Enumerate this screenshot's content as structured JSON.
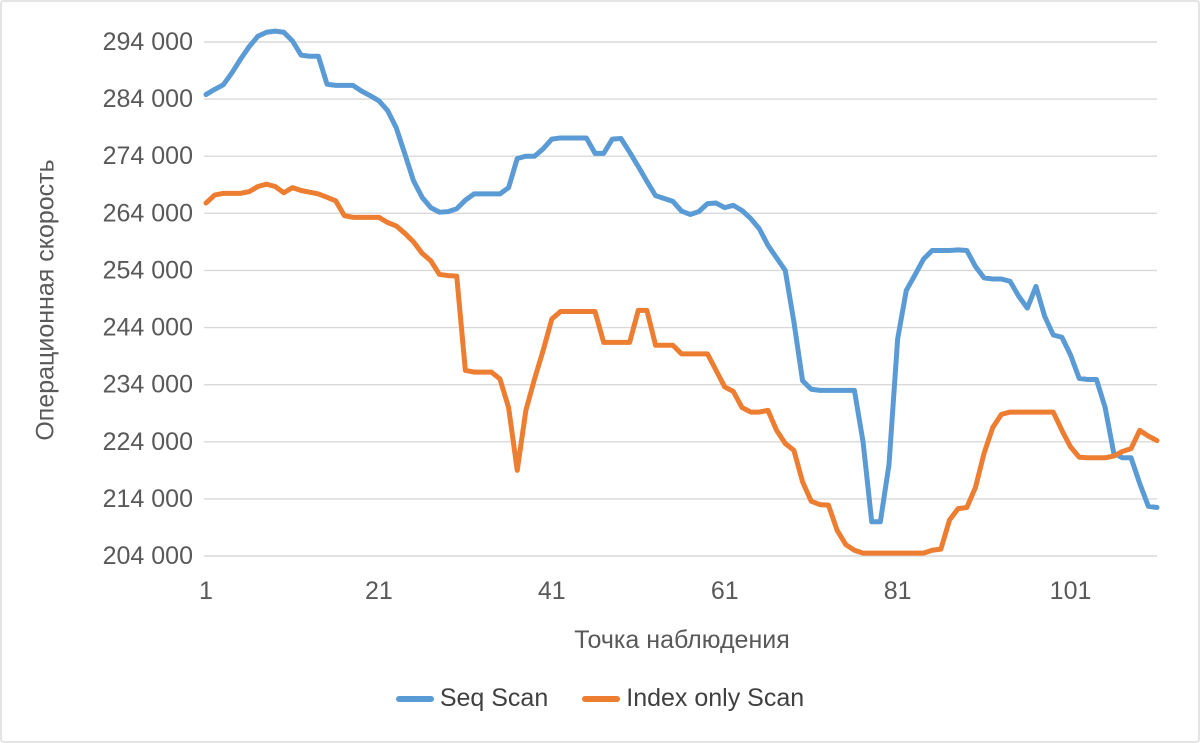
{
  "chart_data": {
    "type": "line",
    "title": "",
    "xlabel": "Точка наблюдения",
    "ylabel": "Операционная скорость",
    "ylim": [
      204000,
      294000
    ],
    "xlim": [
      1,
      111
    ],
    "grid": "horizontal",
    "legend_position": "bottom-center",
    "y_ticks": [
      {
        "label": "294 000",
        "value": 294000
      },
      {
        "label": "284 000",
        "value": 284000
      },
      {
        "label": "274 000",
        "value": 274000
      },
      {
        "label": "264 000",
        "value": 264000
      },
      {
        "label": "254 000",
        "value": 254000
      },
      {
        "label": "244 000",
        "value": 244000
      },
      {
        "label": "234 000",
        "value": 234000
      },
      {
        "label": "224 000",
        "value": 224000
      },
      {
        "label": "214 000",
        "value": 214000
      },
      {
        "label": "204 000",
        "value": 204000
      }
    ],
    "x_ticks": [
      {
        "label": "1",
        "value": 1
      },
      {
        "label": "21",
        "value": 21
      },
      {
        "label": "41",
        "value": 41
      },
      {
        "label": "61",
        "value": 61
      },
      {
        "label": "81",
        "value": 81
      },
      {
        "label": "101",
        "value": 101
      }
    ],
    "x_start": 1,
    "series": [
      {
        "name": "Seq Scan",
        "color": "#5B9BD5",
        "values": [
          284800,
          285700,
          286500,
          288600,
          291000,
          293200,
          295000,
          295700,
          295900,
          295700,
          294200,
          291700,
          291500,
          291500,
          286600,
          286400,
          286400,
          286400,
          285400,
          284600,
          283700,
          282000,
          279000,
          274400,
          269700,
          266800,
          265000,
          264200,
          264300,
          264800,
          266300,
          267400,
          267400,
          267400,
          267400,
          268500,
          273600,
          274000,
          274000,
          275300,
          277000,
          277200,
          277200,
          277200,
          277200,
          274500,
          274500,
          277000,
          277100,
          274700,
          272200,
          269600,
          267100,
          266600,
          266100,
          264400,
          263800,
          264300,
          265700,
          265800,
          265000,
          265400,
          264500,
          263100,
          261300,
          258400,
          256200,
          254000,
          245000,
          234700,
          233200,
          233000,
          233000,
          233000,
          233000,
          233000,
          224000,
          210000,
          210000,
          220000,
          242000,
          250500,
          253200,
          256000,
          257500,
          257500,
          257500,
          257600,
          257500,
          254700,
          252700,
          252500,
          252500,
          252100,
          249500,
          247400,
          251200,
          246000,
          242700,
          242300,
          239200,
          235100,
          234900,
          234900,
          230000,
          222000,
          221200,
          221200,
          216700,
          212700,
          212500
        ]
      },
      {
        "name": "Index only Scan",
        "color": "#ED7D31",
        "values": [
          265800,
          267200,
          267500,
          267500,
          267500,
          267800,
          268700,
          269100,
          268700,
          267600,
          268500,
          268000,
          267700,
          267400,
          266800,
          266200,
          263600,
          263300,
          263300,
          263300,
          263300,
          262400,
          261800,
          260500,
          259000,
          257000,
          255700,
          253300,
          253100,
          253000,
          236500,
          236200,
          236200,
          236200,
          235000,
          230000,
          219000,
          229500,
          235000,
          240000,
          245500,
          246800,
          246800,
          246800,
          246800,
          246800,
          241400,
          241400,
          241400,
          241400,
          247000,
          247000,
          240900,
          240900,
          240900,
          239400,
          239400,
          239400,
          239400,
          236500,
          233600,
          232800,
          230000,
          229200,
          229200,
          229500,
          226000,
          223700,
          222500,
          217000,
          213600,
          213000,
          212900,
          208500,
          206000,
          205000,
          204500,
          204500,
          204500,
          204500,
          204500,
          204500,
          204500,
          204500,
          205000,
          205200,
          210300,
          212300,
          212500,
          216000,
          222000,
          226500,
          228800,
          229200,
          229200,
          229200,
          229200,
          229200,
          229200,
          226000,
          223100,
          221300,
          221200,
          221200,
          221200,
          221500,
          222300,
          222800,
          226000,
          225000,
          224200
        ]
      }
    ],
    "colors": {
      "grid": "#D9D9D9",
      "tick_text": "#595959",
      "axis_title_text": "#595959",
      "legend_text": "#404040"
    }
  }
}
